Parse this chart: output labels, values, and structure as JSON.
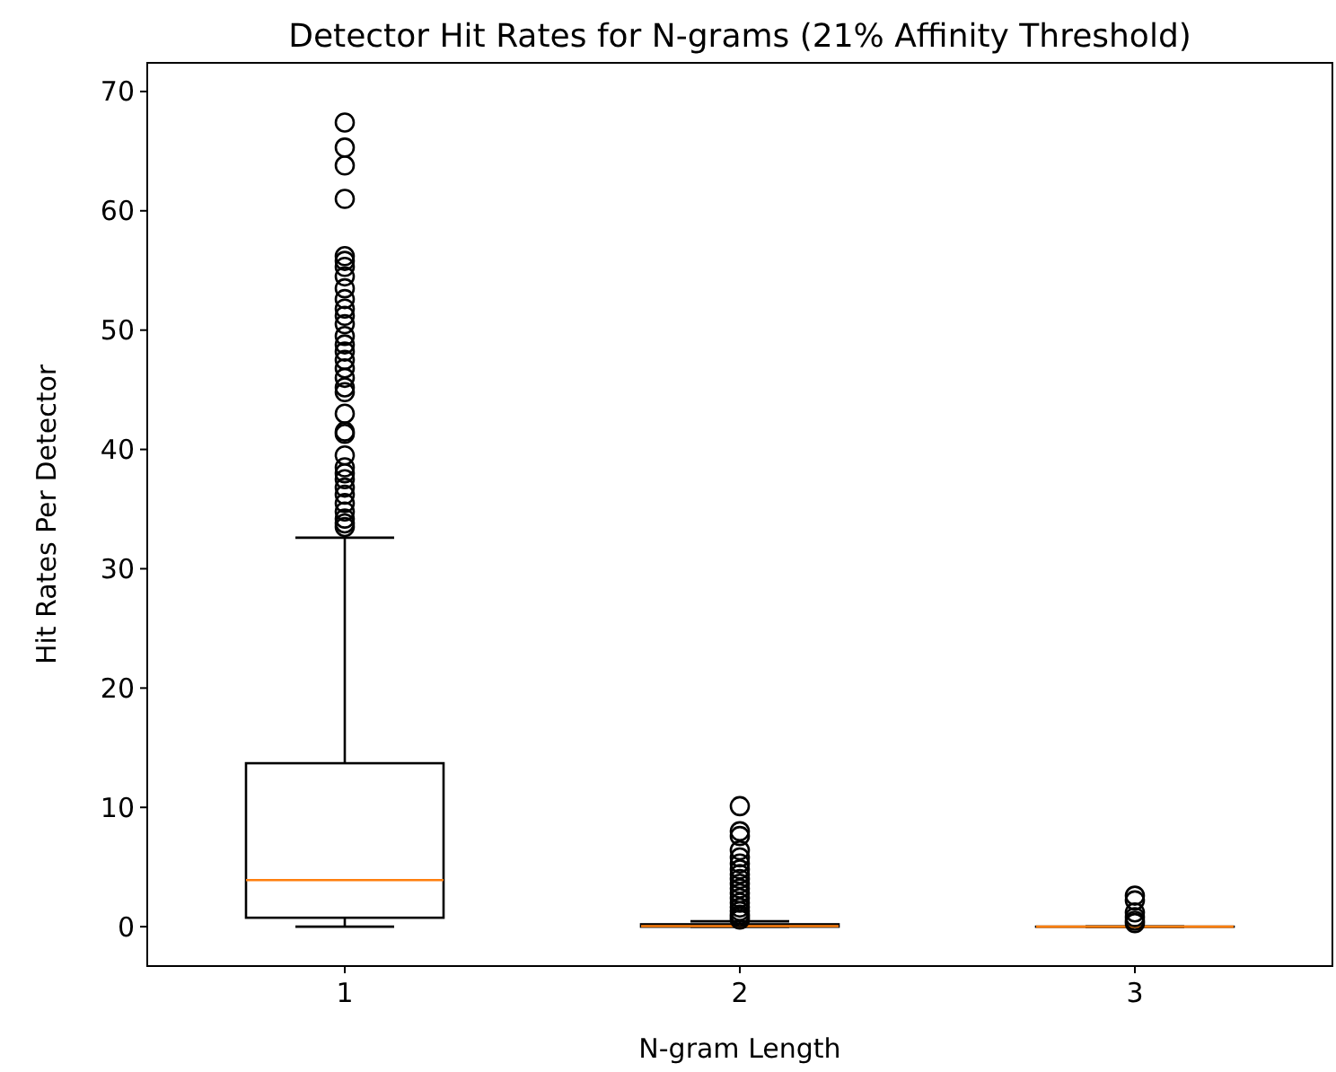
{
  "chart_data": {
    "type": "box",
    "title": "Detector Hit Rates for N-grams (21% Affinity Threshold)",
    "xlabel": "N-gram Length",
    "ylabel": "Hit Rates Per Detector",
    "categories": [
      "1",
      "2",
      "3"
    ],
    "ylim": [
      -3.3,
      72.4
    ],
    "yticks": [
      0,
      10,
      20,
      30,
      40,
      50,
      60,
      70
    ],
    "color": "#000000",
    "grid": false,
    "marker": "circle",
    "boxes": [
      {
        "low": 0,
        "q1": 0.75,
        "median": 3.9,
        "q3": 13.7,
        "high": 32.6,
        "outliers": [
          67.4,
          65.3,
          63.8,
          61,
          56.2,
          55.8,
          55.3,
          54.5,
          53.5,
          52.6,
          51.8,
          51.2,
          50.5,
          49.5,
          48.8,
          48.2,
          47.5,
          46.8,
          46,
          45.2,
          44.8,
          43,
          41.5,
          41.3,
          39.5,
          38.5,
          38,
          37.5,
          36.8,
          36.2,
          35.5,
          34.8,
          34.2,
          33.8,
          33.5
        ]
      },
      {
        "low": 0,
        "q1": 0,
        "median": 0.05,
        "q3": 0.2,
        "high": 0.45,
        "outliers": [
          10.1,
          8,
          7.6,
          6.4,
          5.8,
          5.3,
          4.8,
          4.4,
          4,
          3.6,
          3.2,
          2.8,
          2.4,
          2,
          1.6,
          1.3,
          1,
          0.8,
          0.6
        ]
      },
      {
        "low": 0,
        "q1": 0,
        "median": 0,
        "q3": 0,
        "high": 0,
        "outliers": [
          2.6,
          2.2,
          1.2,
          0.8,
          0.5,
          0.3
        ]
      }
    ]
  }
}
